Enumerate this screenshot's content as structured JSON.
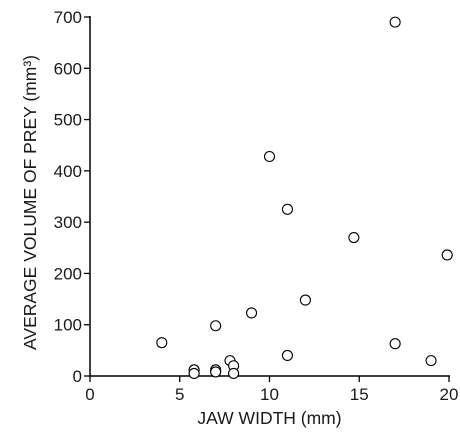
{
  "chart_data": {
    "type": "scatter",
    "xlabel": "JAW WIDTH (mm)",
    "ylabel": "AVERAGE VOLUME OF PREY (mm³)",
    "xlim": [
      0,
      20
    ],
    "ylim": [
      0,
      700
    ],
    "xticks": [
      0,
      5,
      10,
      15,
      20
    ],
    "yticks": [
      0,
      100,
      200,
      300,
      400,
      500,
      600,
      700
    ],
    "grid": false,
    "marker": "open-circle",
    "points": [
      {
        "x": 4.0,
        "y": 65
      },
      {
        "x": 5.8,
        "y": 12
      },
      {
        "x": 5.8,
        "y": 5
      },
      {
        "x": 7.0,
        "y": 98
      },
      {
        "x": 7.0,
        "y": 12
      },
      {
        "x": 7.0,
        "y": 8
      },
      {
        "x": 7.8,
        "y": 30
      },
      {
        "x": 8.0,
        "y": 20
      },
      {
        "x": 8.0,
        "y": 5
      },
      {
        "x": 9.0,
        "y": 123
      },
      {
        "x": 10.0,
        "y": 428
      },
      {
        "x": 11.0,
        "y": 325
      },
      {
        "x": 11.0,
        "y": 40
      },
      {
        "x": 12.0,
        "y": 148
      },
      {
        "x": 14.7,
        "y": 270
      },
      {
        "x": 17.0,
        "y": 690
      },
      {
        "x": 17.0,
        "y": 63
      },
      {
        "x": 19.0,
        "y": 30
      },
      {
        "x": 19.9,
        "y": 236
      }
    ]
  }
}
